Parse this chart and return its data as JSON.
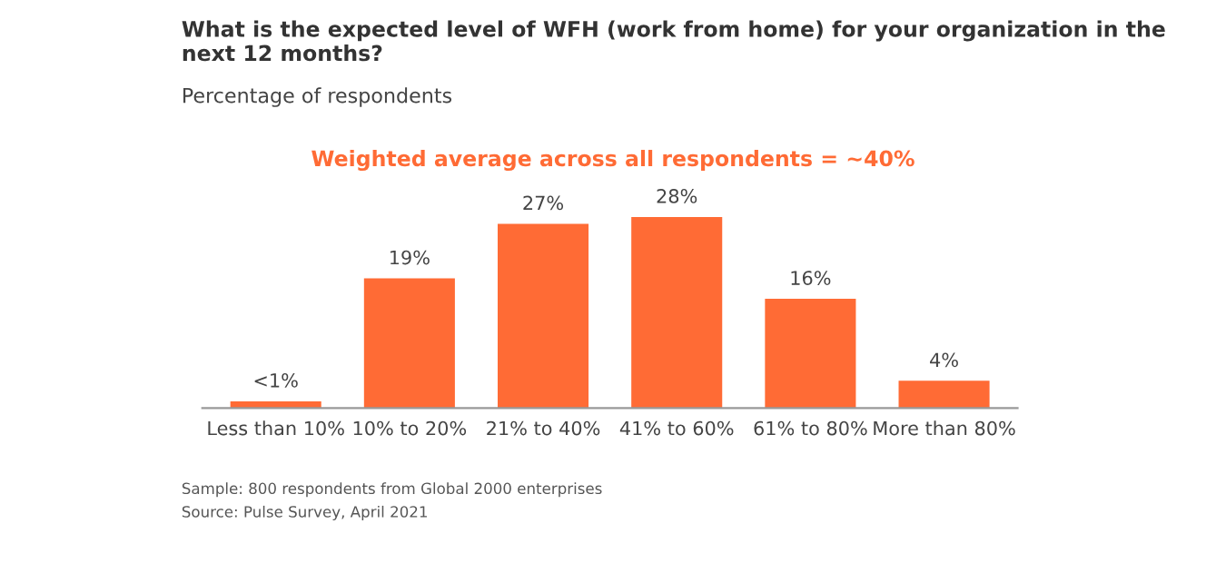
{
  "chart_data": {
    "type": "bar",
    "title": "What is the expected level of WFH (work from home) for your organization in the next 12 months?",
    "subtitle": "Percentage of respondents",
    "categories": [
      "Less than 10%",
      "10% to 20%",
      "21% to 40%",
      "41% to 60%",
      "61% to 80%",
      "More than 80%"
    ],
    "values": [
      1,
      19,
      27,
      28,
      16,
      4
    ],
    "value_labels": [
      "<1%",
      "19%",
      "27%",
      "28%",
      "16%",
      "4%"
    ],
    "color": "#ff6b35",
    "annotations": [
      "Weighted average across all respondents = ~40%",
      "Sample: 800 respondents from Global 2000 enterprises",
      "Source: Pulse Survey, April 2021"
    ],
    "grid": false,
    "legend": false
  }
}
